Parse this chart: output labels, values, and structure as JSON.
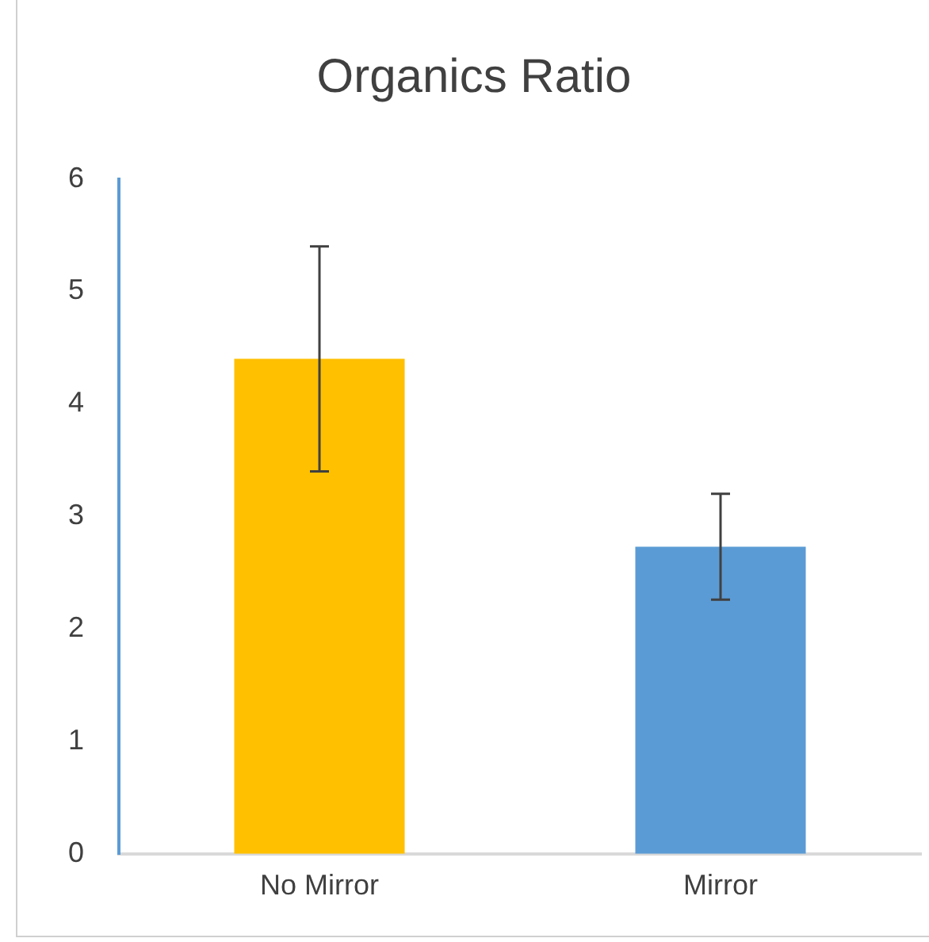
{
  "chart_data": {
    "type": "bar",
    "title": "Organics Ratio",
    "categories": [
      "No Mirror",
      "Mirror"
    ],
    "values": [
      4.4,
      2.73
    ],
    "colors": [
      "#ffc000",
      "#5b9bd5"
    ],
    "errors": [
      1.0,
      0.47
    ],
    "ylim": [
      0,
      6
    ],
    "yticks": [
      0,
      1,
      2,
      3,
      4,
      5,
      6
    ],
    "grid": false,
    "legend": false
  }
}
